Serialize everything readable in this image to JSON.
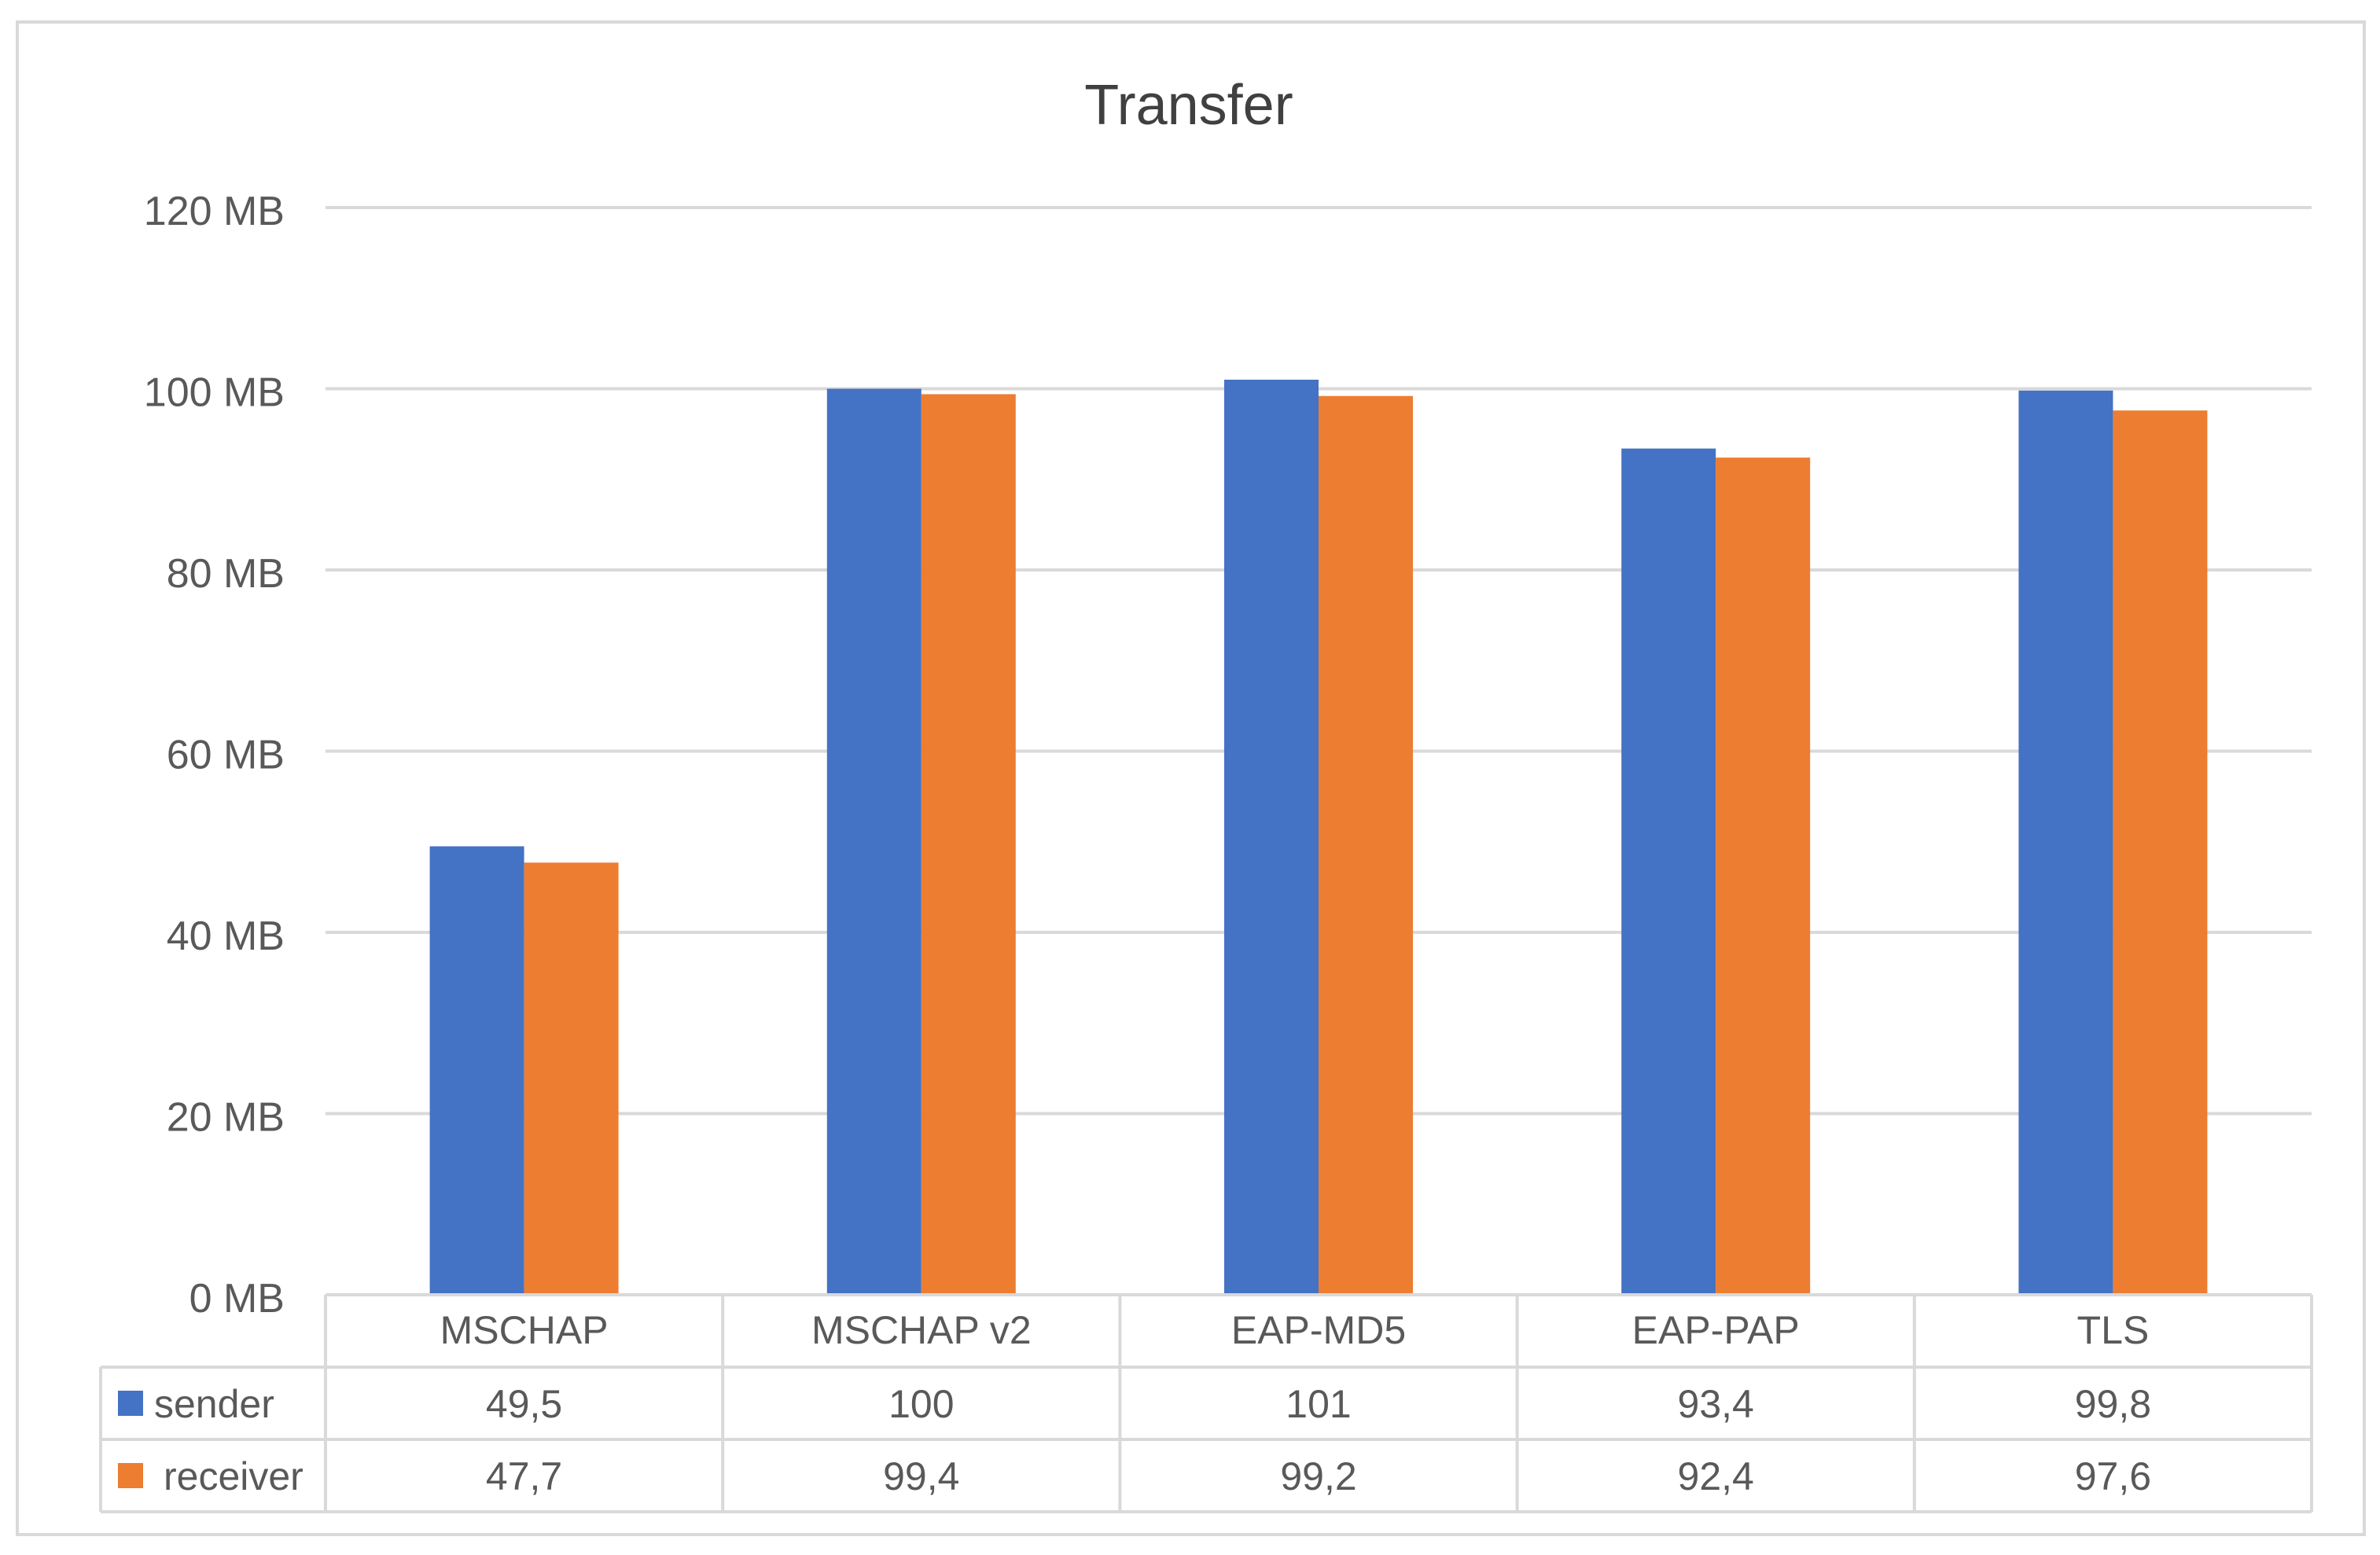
{
  "chart_data": {
    "type": "bar",
    "title": "Transfer",
    "categories": [
      "MSCHAP",
      "MSCHAP v2",
      "EAP-MD5",
      "EAP-PAP",
      "TLS"
    ],
    "series": [
      {
        "name": "sender",
        "values": [
          49.5,
          100,
          101,
          93.4,
          99.8
        ],
        "labels": [
          "49,5",
          "100",
          "101",
          "93,4",
          "99,8"
        ],
        "color": "#4472C4"
      },
      {
        "name": "receiver",
        "values": [
          47.7,
          99.4,
          99.2,
          92.4,
          97.6
        ],
        "labels": [
          "47,7",
          "99,4",
          "99,2",
          "92,4",
          "97,6"
        ],
        "color": "#ED7D31"
      }
    ],
    "ylim": [
      0,
      120
    ],
    "yticks": [
      0,
      20,
      40,
      60,
      80,
      100,
      120
    ],
    "ytick_labels": [
      "0 MB",
      "20 MB",
      "40 MB",
      "60 MB",
      "80 MB",
      "100 MB",
      "120 MB"
    ],
    "grid": true,
    "legend": "data-table",
    "xlabel": "",
    "ylabel": ""
  }
}
